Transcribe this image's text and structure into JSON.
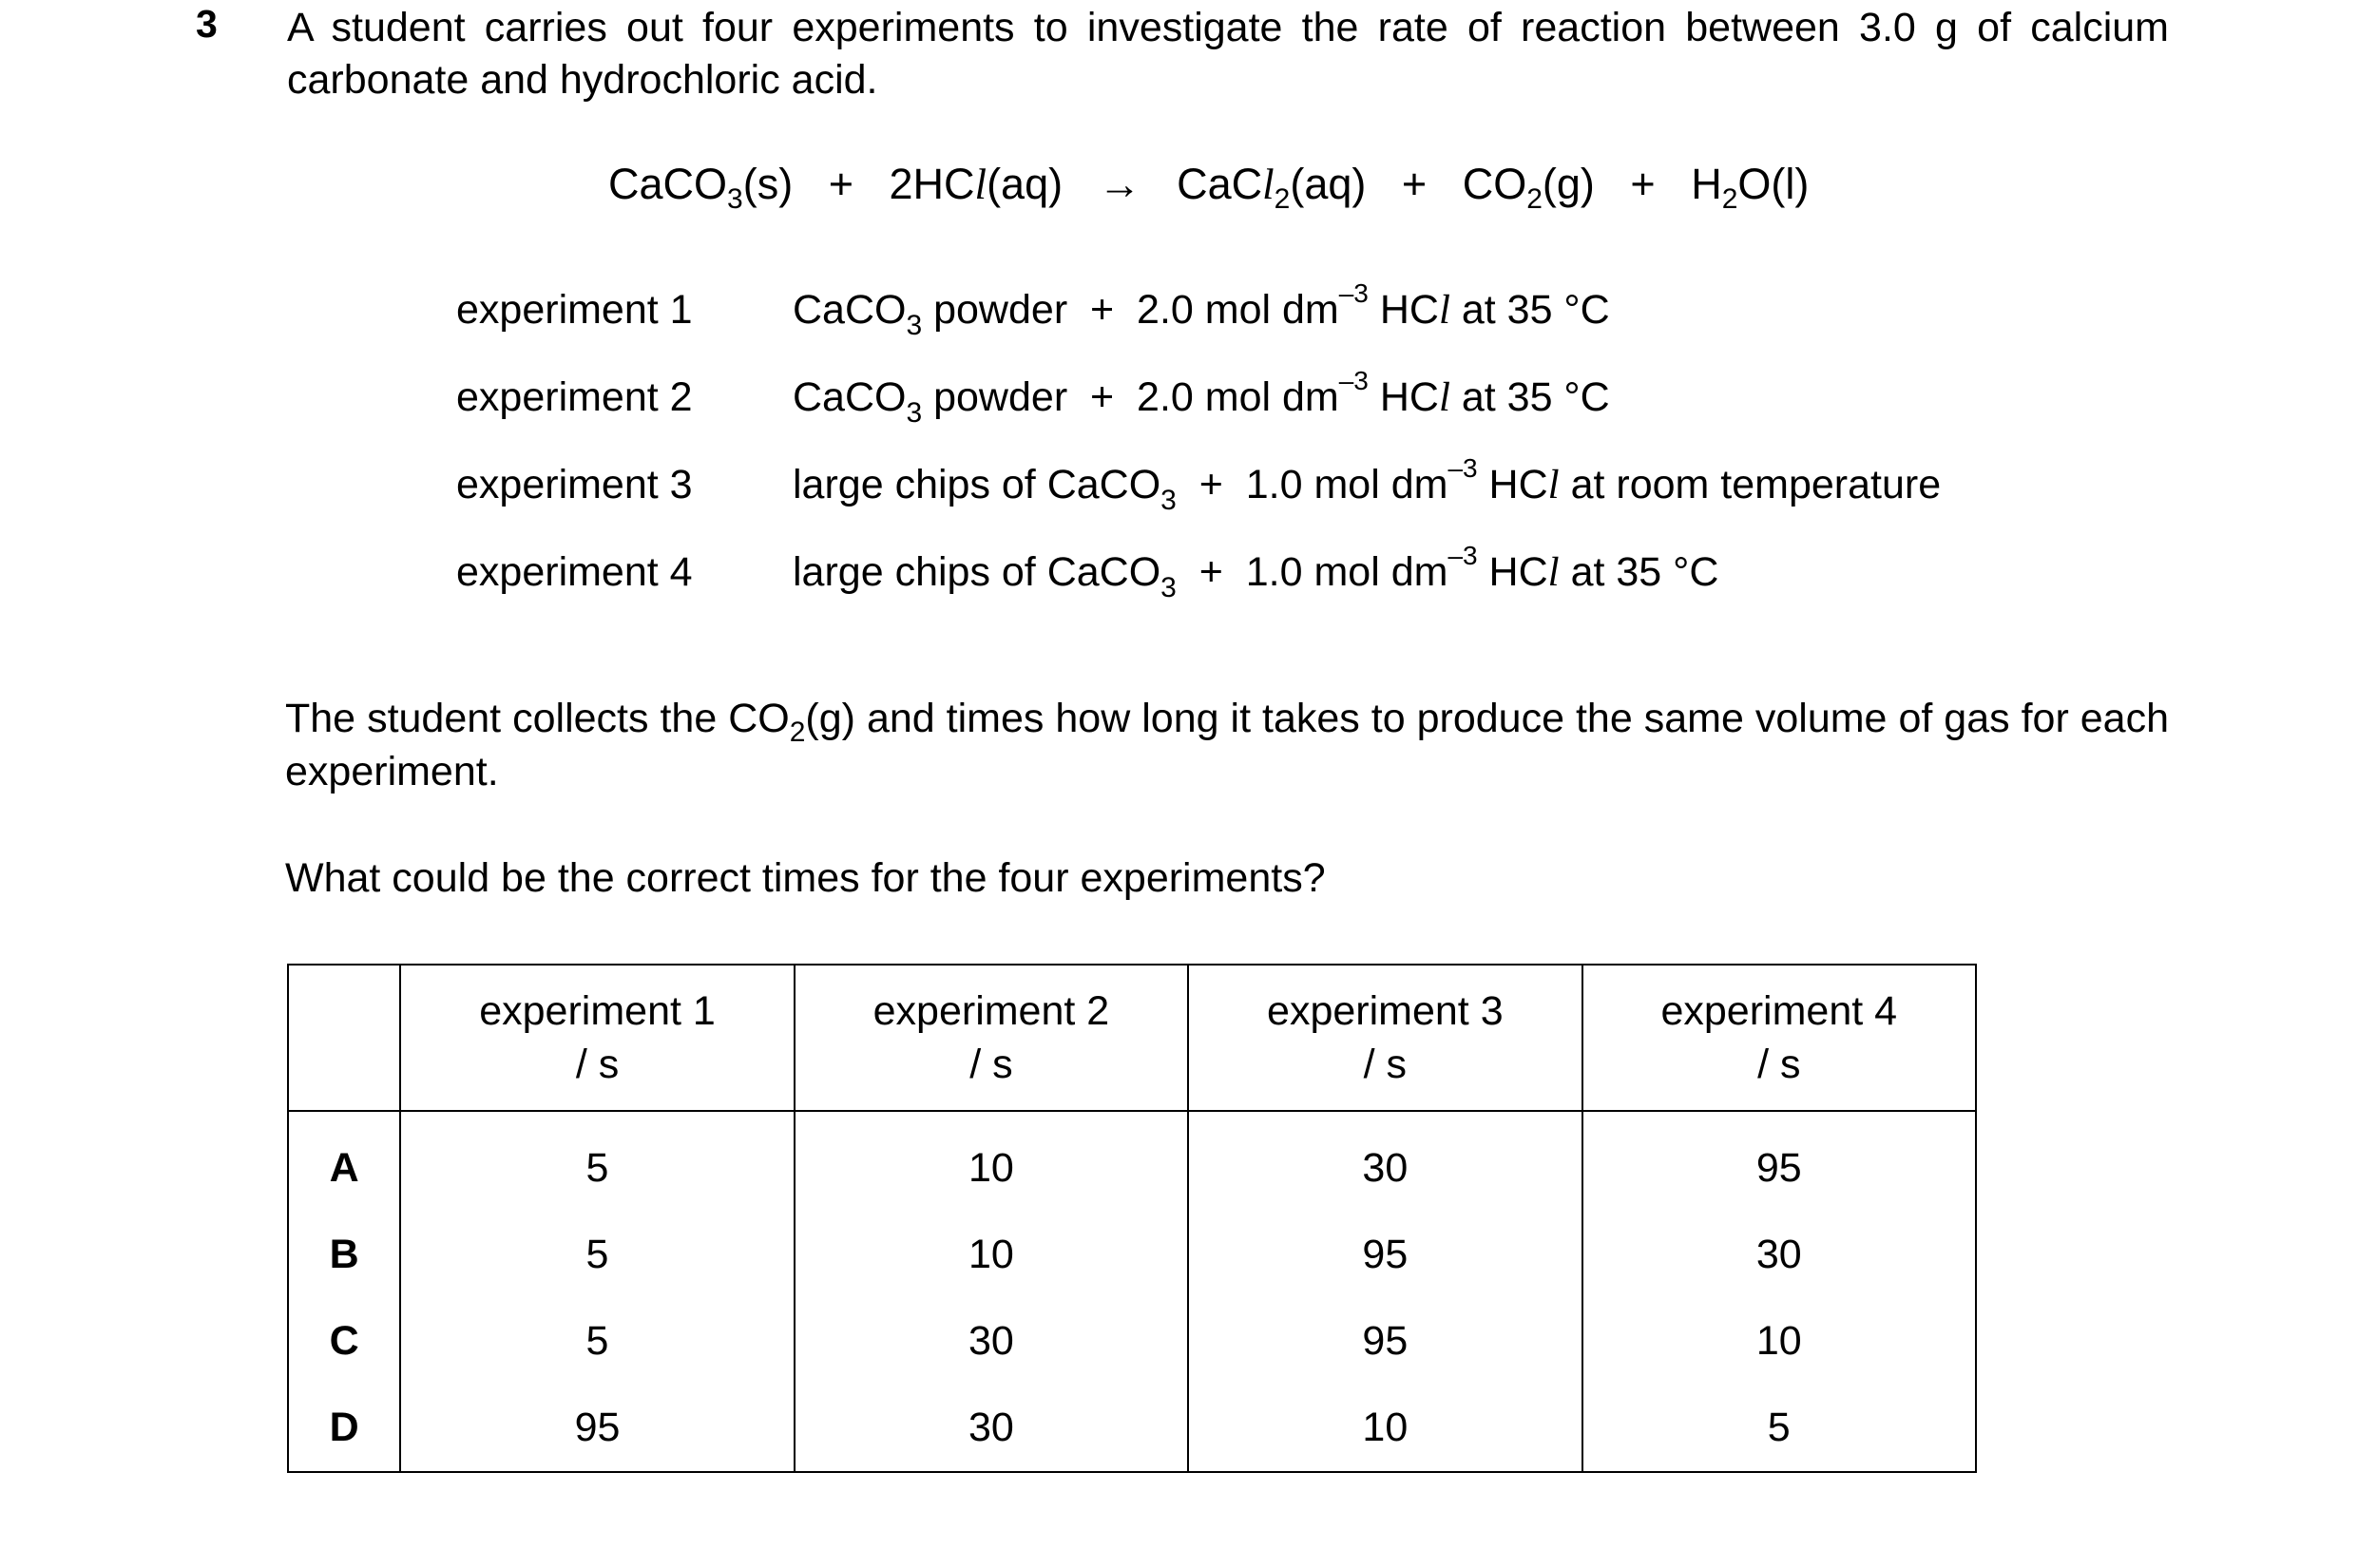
{
  "question": {
    "number": "3",
    "intro": "A student carries out four experiments to investigate the rate of reaction between 3.0 g of calcium carbonate and hydrochloric acid."
  },
  "equation": {
    "reactant1": "CaCO",
    "reactant1_sub": "3",
    "reactant1_state": "(s)",
    "plus1": "+",
    "reactant2": "2HC",
    "reactant2_l": "l",
    "reactant2_state": "(aq)",
    "arrow": "→",
    "product1": "CaC",
    "product1_l": "l",
    "product1_sub": "2",
    "product1_state": "(aq)",
    "plus2": "+",
    "product2": "CO",
    "product2_sub": "2",
    "product2_state": "(g)",
    "plus3": "+",
    "product3": "H",
    "product3_sub": "2",
    "product3_state": "O(l)"
  },
  "experiments": [
    {
      "label": "experiment 1",
      "pre": "CaCO",
      "pre_sub": "3",
      "mid": " powder  +  2.0 mol dm",
      "sup": "–3",
      "acid": " HC",
      "acid_l": "l",
      "post": " at 35 °C"
    },
    {
      "label": "experiment 2",
      "pre": "CaCO",
      "pre_sub": "3",
      "mid": " powder  +  2.0 mol dm",
      "sup": "–3",
      "acid": " HC",
      "acid_l": "l",
      "post": " at 35 °C"
    },
    {
      "label": "experiment 3",
      "pre": "large chips of CaCO",
      "pre_sub": "3",
      "mid": "  +  1.0 mol dm",
      "sup": "–3",
      "acid": " HC",
      "acid_l": "l",
      "post": " at room temperature"
    },
    {
      "label": "experiment 4",
      "pre": "large chips of CaCO",
      "pre_sub": "3",
      "mid": "  +  1.0 mol dm",
      "sup": "–3",
      "acid": " HC",
      "acid_l": "l",
      "post": " at 35 °C"
    }
  ],
  "collects": {
    "pre": "The student collects the CO",
    "sub": "2",
    "post": "(g) and times how long it takes to produce the same volume of gas for each experiment."
  },
  "prompt": "What could be the correct times for the four experiments?",
  "table": {
    "headers": [
      {
        "line1": "experiment 1",
        "line2": "/ s"
      },
      {
        "line1": "experiment 2",
        "line2": "/ s"
      },
      {
        "line1": "experiment 3",
        "line2": "/ s"
      },
      {
        "line1": "experiment 4",
        "line2": "/ s"
      }
    ],
    "rows": [
      {
        "key": "A",
        "values": [
          "5",
          "10",
          "30",
          "95"
        ]
      },
      {
        "key": "B",
        "values": [
          "5",
          "10",
          "95",
          "30"
        ]
      },
      {
        "key": "C",
        "values": [
          "5",
          "30",
          "95",
          "10"
        ]
      },
      {
        "key": "D",
        "values": [
          "95",
          "30",
          "10",
          "5"
        ]
      }
    ]
  }
}
